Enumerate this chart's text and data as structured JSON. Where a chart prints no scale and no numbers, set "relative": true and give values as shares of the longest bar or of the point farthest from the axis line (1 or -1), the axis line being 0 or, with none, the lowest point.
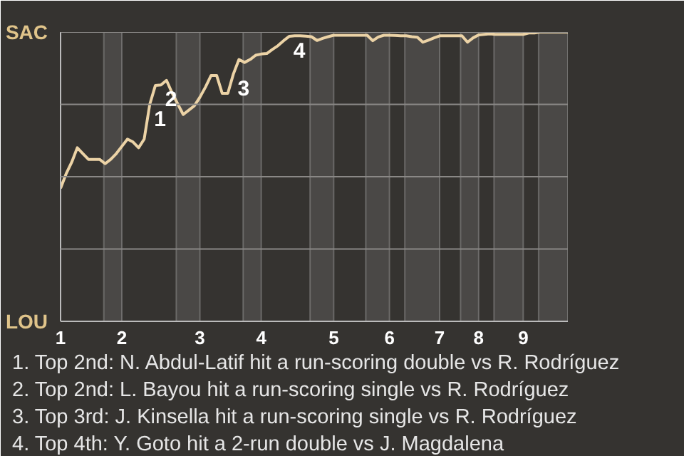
{
  "chart_data": {
    "type": "line",
    "relative": true,
    "grid": "y",
    "marker": "none",
    "line_style": "solid",
    "categories": [
      "1",
      null,
      null,
      null,
      null,
      null,
      null,
      null,
      null,
      null,
      null,
      "2",
      null,
      null,
      null,
      null,
      null,
      null,
      null,
      null,
      null,
      null,
      null,
      null,
      null,
      "3",
      null,
      null,
      null,
      null,
      null,
      null,
      null,
      null,
      null,
      null,
      "4",
      null,
      null,
      null,
      null,
      null,
      null,
      null,
      null,
      null,
      null,
      null,
      null,
      "5",
      null,
      null,
      null,
      null,
      null,
      null,
      null,
      null,
      null,
      "6",
      null,
      null,
      null,
      null,
      null,
      null,
      null,
      null,
      "7",
      null,
      null,
      null,
      null,
      null,
      null,
      "8",
      null,
      null,
      null,
      null,
      null,
      null,
      null,
      "9",
      null,
      null,
      null,
      null,
      null,
      null,
      null,
      null
    ],
    "series": [
      {
        "color": "#ecd3a6",
        "values": [
          0.46,
          0.51,
          0.55,
          0.6,
          0.58,
          0.56,
          0.56,
          0.56,
          0.545,
          0.56,
          0.58,
          0.605,
          0.63,
          0.62,
          0.6,
          0.63,
          0.75,
          0.815,
          0.817,
          0.833,
          0.79,
          0.752,
          0.715,
          0.73,
          0.745,
          0.775,
          0.81,
          0.85,
          0.85,
          0.788,
          0.788,
          0.855,
          0.905,
          0.895,
          0.905,
          0.92,
          0.924,
          0.926,
          0.94,
          0.953,
          0.97,
          0.985,
          0.987,
          0.987,
          0.986,
          0.984,
          0.971,
          0.978,
          0.984,
          0.989,
          0.989,
          0.989,
          0.989,
          0.989,
          0.989,
          0.989,
          0.97,
          0.983,
          0.989,
          0.989,
          0.988,
          0.987,
          0.987,
          0.984,
          0.982,
          0.965,
          0.972,
          0.98,
          0.987,
          0.987,
          0.987,
          0.987,
          0.987,
          0.965,
          0.98,
          0.99,
          0.992,
          0.994,
          0.992,
          0.992,
          0.992,
          0.992,
          0.992,
          0.992,
          0.997,
          0.997,
          1,
          1,
          1,
          1,
          1,
          1
        ]
      }
    ],
    "annotations": [
      "SAC",
      "LOU",
      "1",
      "2",
      "3",
      "4",
      "1. Top 2nd: N. Abdul-Latif hit a run-scoring double vs R. Rodríguez",
      "2. Top 2nd: L. Bayou hit a run-scoring single vs R. Rodríguez",
      "3. Top 3rd: J. Kinsella hit a run-scoring single vs R. Rodríguez",
      "4. Top 4th: Y. Goto hit a 2-run double vs J. Magdalena"
    ]
  }
}
